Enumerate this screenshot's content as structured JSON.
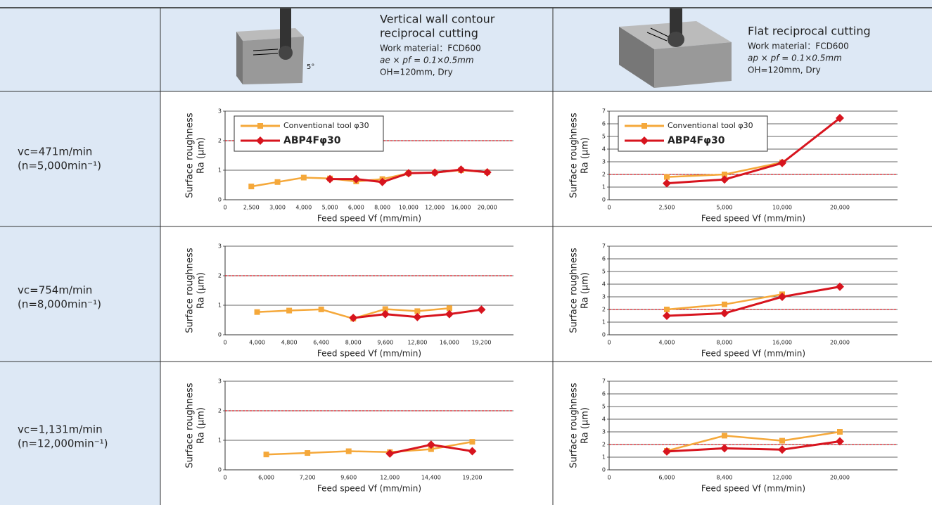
{
  "header": {
    "columns": [
      {
        "title_lines": [
          "Vertical wall contour",
          "reciprocal cutting"
        ],
        "material": "Work material：FCD600",
        "condition": "ae × pf = 0.1×0.5mm",
        "oh": "OH=120mm, Dry",
        "angle": "5°"
      },
      {
        "title_lines": [
          "Flat reciprocal cutting"
        ],
        "material": "Work material：FCD600",
        "condition": "ap × pf = 0.1×0.5mm",
        "oh": "OH=120mm, Dry"
      }
    ]
  },
  "rows": [
    {
      "speed": "vc=471m/min",
      "rpm": "(n=5,000min⁻¹)"
    },
    {
      "speed": "vc=754m/min",
      "rpm": "(n=8,000min⁻¹)"
    },
    {
      "speed": "vc=1,131m/min",
      "rpm": "(n=12,000min⁻¹)"
    }
  ],
  "chart_data": [
    {
      "type": "line",
      "xlabel": "Feed speed Vf (mm/min)",
      "ylabel": [
        "Surface roughness",
        "Ra (μm)"
      ],
      "categories": [
        "0",
        "2,500",
        "3,000",
        "4,000",
        "5,000",
        "6,000",
        "8,000",
        "10,000",
        "12,000",
        "16,000",
        "20,000"
      ],
      "series": [
        {
          "name": "Conventional tool φ30",
          "color": "#f5a83a",
          "marker": "square",
          "values": [
            null,
            0.45,
            0.6,
            0.75,
            0.72,
            0.62,
            0.7,
            0.9,
            0.92,
            1.0,
            0.93
          ]
        },
        {
          "name": "ABP4Fφ30",
          "color": "#d7141e",
          "marker": "diamond",
          "values": [
            null,
            null,
            null,
            null,
            0.7,
            0.7,
            0.6,
            0.9,
            0.92,
            1.02,
            0.93
          ]
        }
      ],
      "ylim": [
        0,
        3
      ],
      "yticks": [
        0,
        1,
        2,
        3
      ],
      "grid": true,
      "ref_line": 2,
      "ref_color": "#d7141e",
      "legend": true
    },
    {
      "type": "line",
      "xlabel": "Feed speed Vf (mm/min)",
      "ylabel": [
        "Surface roughness",
        "Ra (μm)"
      ],
      "categories": [
        "0",
        "2,500",
        "5,000",
        "10,000",
        "20,000"
      ],
      "series": [
        {
          "name": "Conventional tool φ30",
          "color": "#f5a83a",
          "marker": "square",
          "values": [
            null,
            1.8,
            2.0,
            2.95,
            null
          ]
        },
        {
          "name": "ABP4Fφ30",
          "color": "#d7141e",
          "marker": "diamond",
          "values": [
            null,
            1.3,
            1.6,
            2.9,
            6.45
          ]
        }
      ],
      "ylim": [
        0,
        7
      ],
      "yticks": [
        0,
        1,
        2,
        3,
        4,
        5,
        6,
        7
      ],
      "grid": true,
      "ref_line": 2,
      "ref_color": "#d7141e",
      "legend": true
    },
    {
      "type": "line",
      "xlabel": "Feed speed Vf (mm/min)",
      "ylabel": [
        "Surface roughness",
        "Ra (μm)"
      ],
      "categories": [
        "0",
        "4,000",
        "4,800",
        "6,400",
        "8,000",
        "9,600",
        "12,800",
        "16,000",
        "19,200"
      ],
      "series": [
        {
          "name": "Conventional tool φ30",
          "color": "#f5a83a",
          "marker": "square",
          "values": [
            null,
            0.77,
            0.82,
            0.86,
            0.55,
            0.87,
            0.8,
            0.9,
            null
          ]
        },
        {
          "name": "ABP4Fφ30",
          "color": "#d7141e",
          "marker": "diamond",
          "values": [
            null,
            null,
            null,
            null,
            0.57,
            0.7,
            0.6,
            0.7,
            0.85
          ]
        }
      ],
      "ylim": [
        0,
        3
      ],
      "yticks": [
        0,
        1,
        2,
        3
      ],
      "grid": true,
      "ref_line": 2,
      "ref_color": "#d7141e",
      "legend": false
    },
    {
      "type": "line",
      "xlabel": "Feed speed Vf (mm/min)",
      "ylabel": [
        "Surface roughness",
        "Ra (μm)"
      ],
      "categories": [
        "0",
        "4,000",
        "8,000",
        "16,000",
        "20,000"
      ],
      "series": [
        {
          "name": "Conventional tool φ30",
          "color": "#f5a83a",
          "marker": "square",
          "values": [
            null,
            2.0,
            2.4,
            3.2,
            null
          ]
        },
        {
          "name": "ABP4Fφ30",
          "color": "#d7141e",
          "marker": "diamond",
          "values": [
            null,
            1.5,
            1.7,
            3.0,
            3.8
          ]
        }
      ],
      "ylim": [
        0,
        7
      ],
      "yticks": [
        0,
        1,
        2,
        3,
        4,
        5,
        6,
        7
      ],
      "grid": true,
      "ref_line": 2,
      "ref_color": "#d7141e",
      "legend": false
    },
    {
      "type": "line",
      "xlabel": "Feed speed Vf (mm/min)",
      "ylabel": [
        "Surface roughness",
        "Ra (μm)"
      ],
      "categories": [
        "0",
        "6,000",
        "7,200",
        "9,600",
        "12,000",
        "14,400",
        "19,200"
      ],
      "series": [
        {
          "name": "Conventional tool φ30",
          "color": "#f5a83a",
          "marker": "square",
          "values": [
            null,
            0.52,
            0.57,
            0.63,
            0.6,
            0.7,
            0.95
          ]
        },
        {
          "name": "ABP4Fφ30",
          "color": "#d7141e",
          "marker": "diamond",
          "values": [
            null,
            null,
            null,
            null,
            0.55,
            0.85,
            0.63
          ]
        }
      ],
      "ylim": [
        0,
        3
      ],
      "yticks": [
        0,
        1,
        2,
        3
      ],
      "grid": true,
      "ref_line": 2,
      "ref_color": "#d7141e",
      "legend": false
    },
    {
      "type": "line",
      "xlabel": "Feed speed Vf (mm/min)",
      "ylabel": [
        "Surface roughness",
        "Ra (μm)"
      ],
      "categories": [
        "0",
        "6,000",
        "8,400",
        "12,000",
        "20,000"
      ],
      "series": [
        {
          "name": "Conventional tool φ30",
          "color": "#f5a83a",
          "marker": "square",
          "values": [
            null,
            1.5,
            2.7,
            2.3,
            3.0
          ]
        },
        {
          "name": "ABP4Fφ30",
          "color": "#d7141e",
          "marker": "diamond",
          "values": [
            null,
            1.45,
            1.7,
            1.6,
            2.25
          ]
        }
      ],
      "ylim": [
        0,
        7
      ],
      "yticks": [
        0,
        1,
        2,
        3,
        4,
        5,
        6,
        7
      ],
      "grid": true,
      "ref_line": 2,
      "ref_color": "#d7141e",
      "legend": false
    }
  ]
}
